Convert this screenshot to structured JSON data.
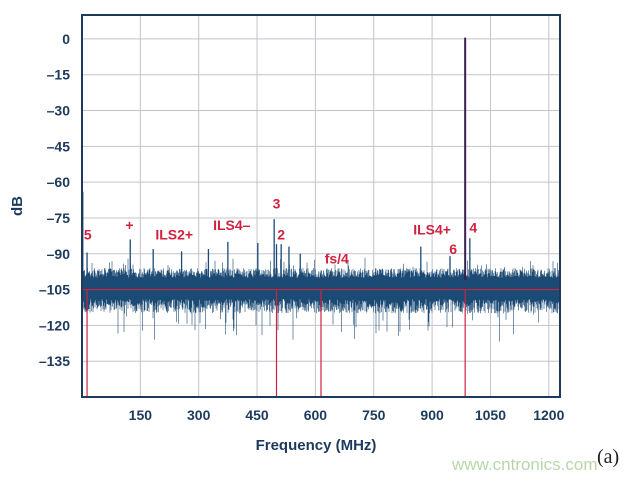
{
  "chart_data": {
    "type": "line",
    "title": "",
    "xlabel": "Frequency (MHz)",
    "ylabel": "dB",
    "xlim": [
      0,
      1228.8
    ],
    "ylim": [
      -150,
      10
    ],
    "xticks": [
      150,
      300,
      450,
      600,
      750,
      900,
      1050,
      1200
    ],
    "yticks": [
      0,
      -15,
      -30,
      -45,
      -60,
      -75,
      -90,
      -105,
      -120,
      -135
    ],
    "ytick_labels": [
      "0",
      "–15",
      "–30",
      "–45",
      "–60",
      "–75",
      "–90",
      "–105",
      "–120",
      "–135"
    ],
    "grid": true,
    "noise_floor_db": -105,
    "series": [
      {
        "name": "fundamental",
        "x": [
          985
        ],
        "y": [
          0.5
        ],
        "color": "#3b1f4f"
      },
      {
        "name": "spurs",
        "color": "#1b4a75",
        "x": [
          2,
          13,
          124,
          183,
          256,
          325,
          375,
          452,
          494,
          500,
          512,
          532,
          561,
          871,
          946,
          997
        ],
        "y": [
          -64,
          -89.5,
          -84,
          -88,
          -89,
          -88,
          -85,
          -85.5,
          -75.5,
          -86,
          -86,
          -87,
          -90,
          -87,
          -91,
          -83.5
        ]
      }
    ],
    "reference_lines": {
      "horizontal_db": -105,
      "vertical_mhz": [
        13,
        500,
        614.4,
        985
      ],
      "color": "#d0223f"
    },
    "annotations": [
      {
        "text": "5",
        "x": 15,
        "y": -84
      },
      {
        "text": "+",
        "x": 122,
        "y": -80
      },
      {
        "text": "ILS2+",
        "x": 237,
        "y": -84
      },
      {
        "text": "ILS4–",
        "x": 385,
        "y": -80
      },
      {
        "text": "3",
        "x": 500,
        "y": -71
      },
      {
        "text": "2",
        "x": 512,
        "y": -84
      },
      {
        "text": "fs/4",
        "x": 655,
        "y": -94
      },
      {
        "text": "ILS4+",
        "x": 900,
        "y": -82
      },
      {
        "text": "6",
        "x": 954,
        "y": -90
      },
      {
        "text": "4",
        "x": 1006,
        "y": -81
      }
    ],
    "panel_label": "(a)"
  },
  "watermark": "www.cntronics.com"
}
